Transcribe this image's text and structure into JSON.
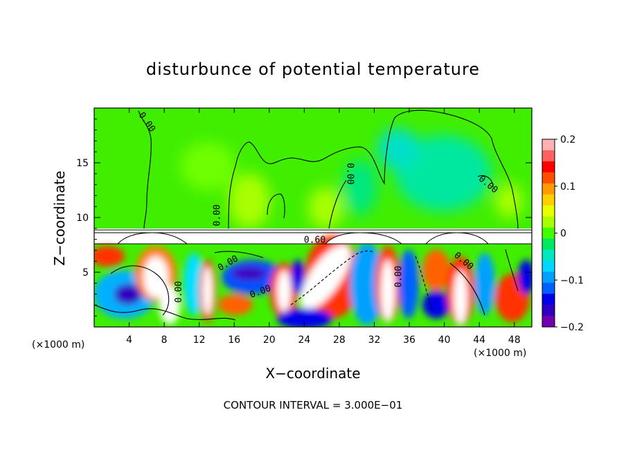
{
  "chart_data": {
    "type": "heatmap",
    "title": "disturbunce of potential temperature",
    "xlabel": "X−coordinate",
    "ylabel": "Z−coordinate",
    "x_unit_left": "(×1000 m)",
    "x_unit_right": "(×1000 m)",
    "x_ticks": [
      4,
      8,
      12,
      16,
      20,
      24,
      28,
      32,
      36,
      40,
      44,
      48
    ],
    "y_ticks": [
      5,
      10,
      15
    ],
    "xlim": [
      0,
      50
    ],
    "ylim": [
      0,
      20
    ],
    "colorbar": {
      "ticks": [
        "0.2",
        "0.1",
        "0",
        "−0.1",
        "−0.2"
      ],
      "values": [
        0.2,
        0.1,
        0,
        -0.1,
        -0.2
      ],
      "range": [
        -0.2,
        0.2
      ],
      "colors": [
        "#ffb0b0",
        "#ff6060",
        "#ff0000",
        "#ff5000",
        "#ff9a00",
        "#ffd000",
        "#e8ff00",
        "#a8ff00",
        "#40ff00",
        "#00e860",
        "#00e8c0",
        "#00d8ff",
        "#00a0ff",
        "#0060ff",
        "#0000e8",
        "#3000c0",
        "#7000b0"
      ]
    },
    "contour_labels": [
      {
        "text": "0.00",
        "x": 6,
        "y": 18.7,
        "angle": 55
      },
      {
        "text": "0.00",
        "x": 14.1,
        "y": 10.2,
        "angle": -90
      },
      {
        "text": "0.00",
        "x": 29.2,
        "y": 14,
        "angle": 90
      },
      {
        "text": "0.00",
        "x": 45,
        "y": 13,
        "angle": 40
      },
      {
        "text": "0.00",
        "x": 15.3,
        "y": 5.8,
        "angle": -30
      },
      {
        "text": "0.00",
        "x": 19,
        "y": 3.2,
        "angle": -20
      },
      {
        "text": "0.00",
        "x": 9.7,
        "y": 3.2,
        "angle": -90
      },
      {
        "text": "0.00",
        "x": 34.8,
        "y": 4.6,
        "angle": -90
      },
      {
        "text": "0.00",
        "x": 42.2,
        "y": 6,
        "angle": 40
      },
      {
        "text": "0.60",
        "x": 25.2,
        "y": 7.9,
        "angle": 0
      }
    ],
    "footer": "CONTOUR INTERVAL = 3.000E−01"
  }
}
